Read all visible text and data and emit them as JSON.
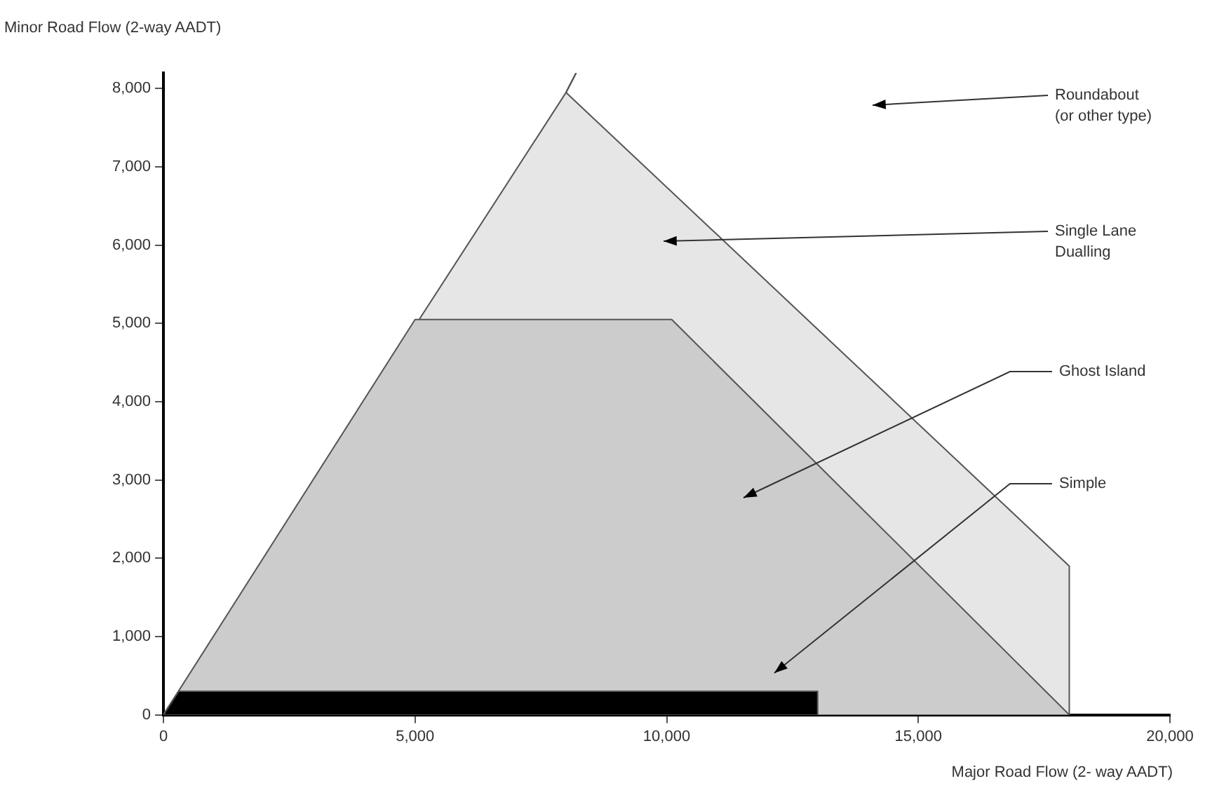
{
  "chart_data": {
    "type": "area",
    "xlabel": "Major Road Flow (2- way AADT)",
    "ylabel": "Minor Road Flow (2-way AADT)",
    "xlim": [
      0,
      20000
    ],
    "ylim": [
      0,
      8200
    ],
    "xticks": [
      {
        "value": 0,
        "label": "0"
      },
      {
        "value": 5000,
        "label": "5,000"
      },
      {
        "value": 10000,
        "label": "10,000"
      },
      {
        "value": 15000,
        "label": "15,000"
      },
      {
        "value": 20000,
        "label": "20,000"
      }
    ],
    "yticks": [
      {
        "value": 0,
        "label": "0"
      },
      {
        "value": 1000,
        "label": "1,000"
      },
      {
        "value": 2000,
        "label": "2,000"
      },
      {
        "value": 3000,
        "label": "3,000"
      },
      {
        "value": 4000,
        "label": "4,000"
      },
      {
        "value": 5000,
        "label": "5,000"
      },
      {
        "value": 6000,
        "label": "6,000"
      },
      {
        "value": 7000,
        "label": "7,000"
      },
      {
        "value": 8000,
        "label": "8,000"
      }
    ],
    "grid": false,
    "legend": false,
    "series": [
      {
        "color": "#e6e6e6",
        "x": [
          0,
          8000,
          18000,
          18000
        ],
        "values": [
          0,
          7950,
          1900,
          0
        ]
      },
      {
        "color": "#cccccc",
        "x": [
          0,
          5000,
          10100,
          18000
        ],
        "values": [
          0,
          5050,
          5050,
          0
        ]
      },
      {
        "color": "#000000",
        "x": [
          0,
          300,
          13000,
          13000
        ],
        "values": [
          0,
          300,
          300,
          0
        ]
      },
      {
        "type": "line",
        "color": "#555555",
        "x": [
          8000,
          8200
        ],
        "values": [
          7950,
          8200
        ]
      }
    ],
    "annotations": [
      "Roundabout\n(or other type)",
      "Single Lane\nDualling",
      "Ghost Island",
      "Simple"
    ]
  }
}
